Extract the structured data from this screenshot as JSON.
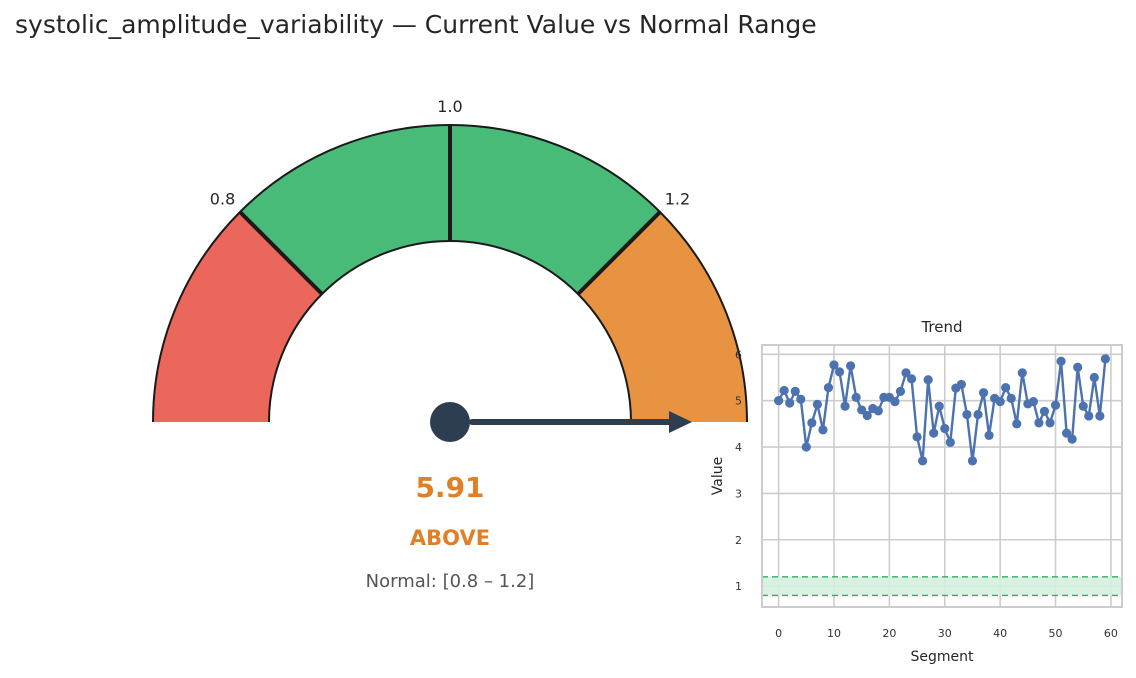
{
  "title": "systolic_amplitude_variability — Current Value vs Normal Range",
  "colors": {
    "below": "#EB675B",
    "normal": "#48BB78",
    "above": "#E89342",
    "needle": "#2D3E50",
    "value_text": "#E07F26",
    "trend_line": "#4C72B0",
    "band_fill": "#D4EFDD",
    "band_line": "#2EAF60"
  },
  "gauge": {
    "scale_min": 0.6,
    "scale_max": 1.4,
    "normal_low": 0.8,
    "normal_high": 1.2,
    "reference": 1.0,
    "tick_labels": [
      "0.8",
      "1.0",
      "1.2"
    ],
    "value": 5.91,
    "value_label": "5.91",
    "status_label": "ABOVE",
    "normal_label": "Normal: [0.8 – 1.2]"
  },
  "chart_data": {
    "type": "line",
    "title": "Trend",
    "xlabel": "Segment",
    "ylabel": "Value",
    "xlim": [
      -3,
      62
    ],
    "ylim": [
      0.55,
      6.2
    ],
    "xticks": [
      "0",
      "10",
      "20",
      "30",
      "40",
      "50",
      "60"
    ],
    "yticks": [
      "1",
      "2",
      "3",
      "4",
      "5",
      "6"
    ],
    "normal_band": [
      0.8,
      1.2
    ],
    "grid": true,
    "x": [
      0,
      1,
      2,
      3,
      4,
      5,
      6,
      7,
      8,
      9,
      10,
      11,
      12,
      13,
      14,
      15,
      16,
      17,
      18,
      19,
      20,
      21,
      22,
      23,
      24,
      25,
      26,
      27,
      28,
      29,
      30,
      31,
      32,
      33,
      34,
      35,
      36,
      37,
      38,
      39,
      40,
      41,
      42,
      43,
      44,
      45,
      46,
      47,
      48,
      49,
      50,
      51,
      52,
      53,
      54,
      55,
      56,
      57,
      58,
      59
    ],
    "y": [
      5.0,
      5.22,
      4.95,
      5.2,
      5.03,
      4.0,
      4.52,
      4.92,
      4.37,
      5.28,
      5.77,
      5.62,
      4.88,
      5.75,
      5.07,
      4.8,
      4.68,
      4.83,
      4.78,
      5.07,
      5.07,
      4.98,
      5.2,
      5.6,
      5.47,
      4.22,
      3.7,
      5.45,
      4.3,
      4.88,
      4.4,
      4.1,
      5.27,
      5.35,
      4.7,
      3.7,
      4.7,
      5.17,
      4.25,
      5.05,
      4.98,
      5.28,
      5.05,
      4.5,
      5.6,
      4.93,
      4.98,
      4.52,
      4.77,
      4.52,
      4.9,
      5.85,
      4.3,
      4.17,
      5.72,
      4.88,
      4.67,
      5.5,
      4.67,
      5.9
    ]
  }
}
